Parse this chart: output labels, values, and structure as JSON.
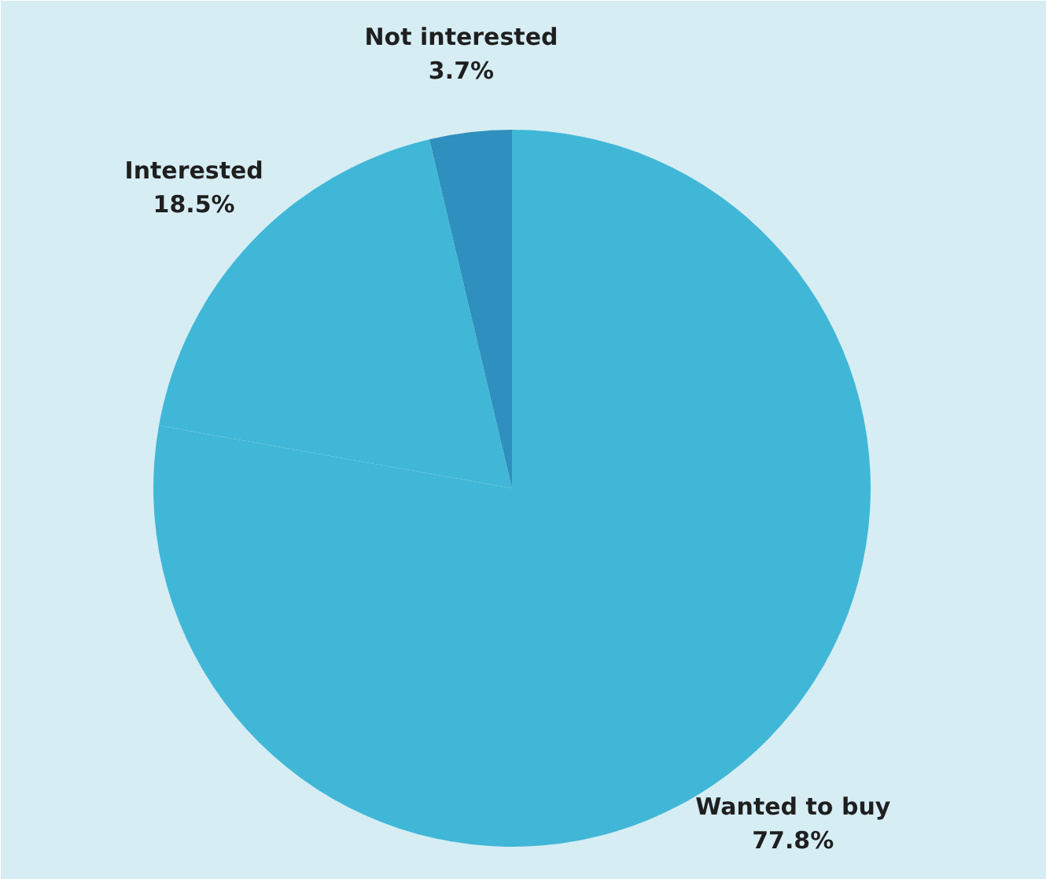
{
  "chart_data": {
    "type": "pie",
    "categories": [
      "Wanted to buy",
      "Interested",
      "Not interested"
    ],
    "values": [
      77.8,
      18.5,
      3.7
    ],
    "colors": [
      "#41b7d7",
      "#41b7d7",
      "#2f8fbe"
    ],
    "value_labels": [
      "77.8%",
      "18.5%",
      "3.7%"
    ]
  }
}
